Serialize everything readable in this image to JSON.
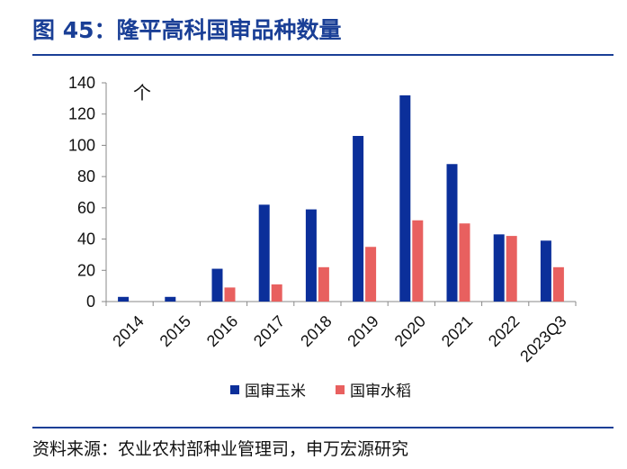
{
  "header": {
    "title": "图 45：隆平高科国审品种数量"
  },
  "footer": {
    "source": "资料来源：农业农村部种业管理司，申万宏源研究"
  },
  "colors": {
    "accent": "#1a3f96",
    "series_1": "#0b2f9a",
    "series_2": "#e8605f"
  },
  "chart_data": {
    "type": "bar",
    "title": "",
    "xlabel": "",
    "ylabel": "个",
    "categories": [
      "2014",
      "2015",
      "2016",
      "2017",
      "2018",
      "2019",
      "2020",
      "2021",
      "2022",
      "2023Q3"
    ],
    "series": [
      {
        "name": "国审玉米",
        "values": [
          3,
          3,
          21,
          62,
          59,
          106,
          132,
          88,
          43,
          39
        ]
      },
      {
        "name": "国审水稻",
        "values": [
          0,
          0,
          9,
          11,
          22,
          35,
          52,
          50,
          42,
          22
        ]
      }
    ],
    "ylim": [
      0,
      140
    ],
    "yticks": [
      0,
      20,
      40,
      60,
      80,
      100,
      120,
      140
    ],
    "grid": false,
    "legend": "bottom"
  }
}
